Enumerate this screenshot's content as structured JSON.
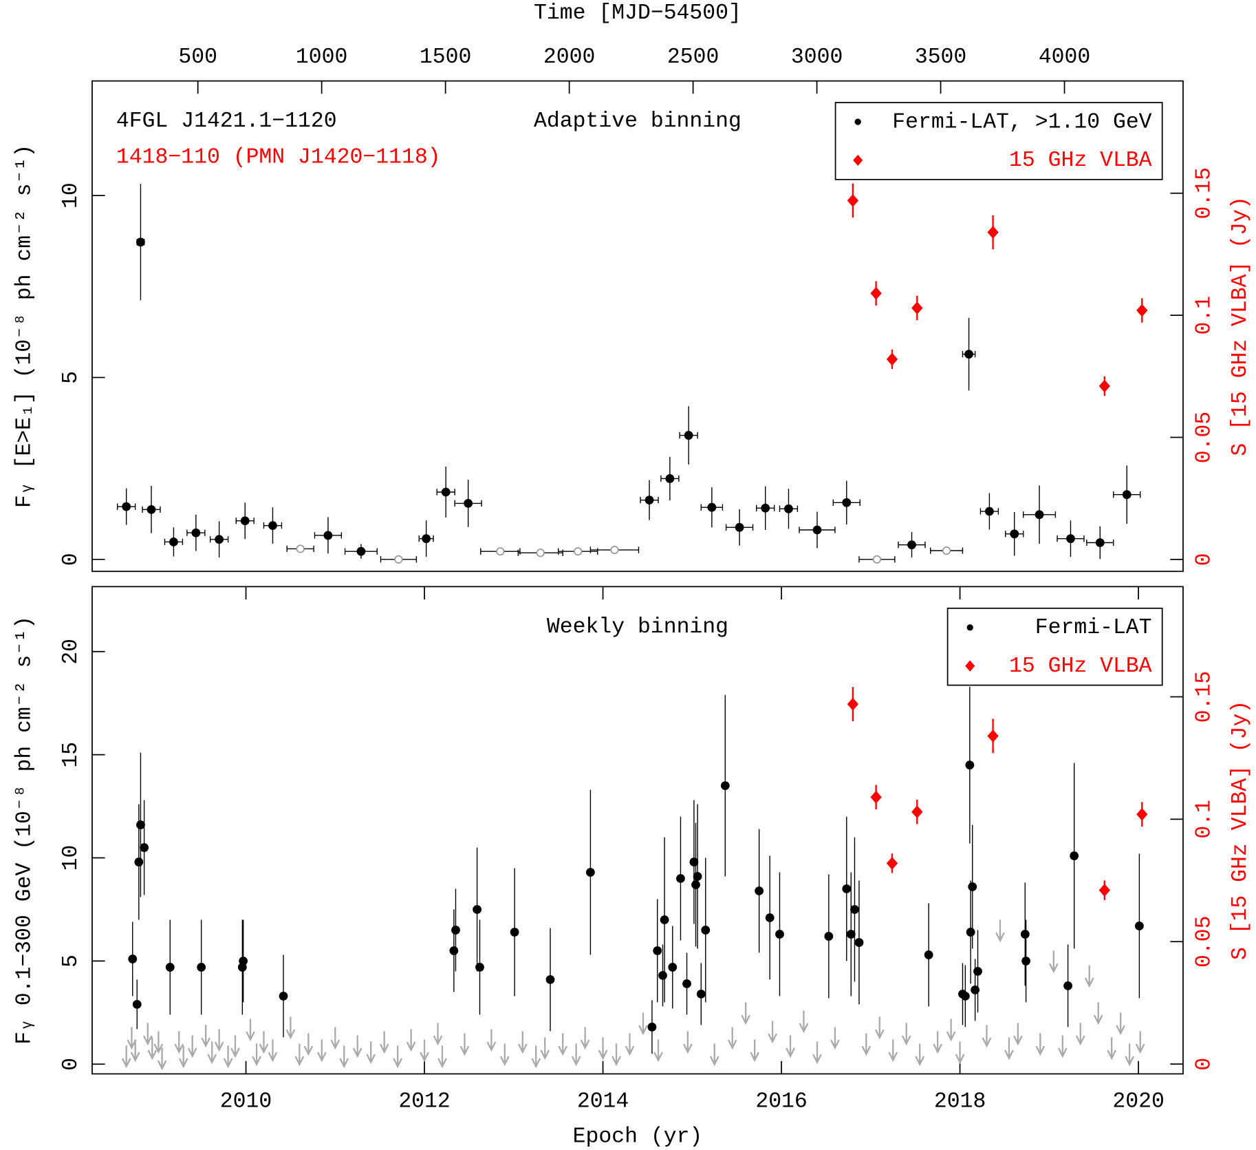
{
  "chart_data": [
    {
      "type": "scatter",
      "title": "Adaptive binning",
      "annotations": [
        {
          "text": "4FGL J1421.1−1120",
          "color": "#000000"
        },
        {
          "text": "1418−110 (PMN J1420−1118)",
          "color": "#ff0000"
        }
      ],
      "x2label": "Time [MJD−54500]",
      "ylabel": "Fᵧ [E>E₁] (10⁻⁸ ph cm⁻² s⁻¹)",
      "y2label": "S [15 GHz VLBA] (Jy)",
      "xlim": [
        2008.277,
        2020.5
      ],
      "x2lim": [
        73,
        4479
      ],
      "x2ticks": [
        500,
        1000,
        1500,
        2000,
        2500,
        3000,
        3500,
        4000
      ],
      "ylim": [
        -0.33,
        13.15
      ],
      "yticks": [
        0,
        5,
        10
      ],
      "y2lim": [
        -0.0049,
        0.196
      ],
      "y2ticks": [
        0,
        0.05,
        0.1,
        0.15
      ],
      "legend": "upper right",
      "series": [
        {
          "name": "Fermi-LAT, >1.10 GeV",
          "color": "#000000",
          "marker": "circle",
          "x": [
            2008.66,
            2008.82,
            2008.94,
            2009.19,
            2009.44,
            2009.7,
            2009.99,
            2010.3,
            2010.92,
            2011.29,
            2012.02,
            2012.24,
            2012.49,
            2014.52,
            2014.75,
            2014.96,
            2015.22,
            2015.53,
            2015.82,
            2016.08,
            2016.4,
            2016.73,
            2017.46,
            2018.1,
            2018.33,
            2018.61,
            2018.89,
            2019.24,
            2019.57,
            2019.87
          ],
          "xerr": [
            0.1,
            0.04,
            0.1,
            0.1,
            0.1,
            0.1,
            0.1,
            0.1,
            0.15,
            0.18,
            0.08,
            0.1,
            0.15,
            0.1,
            0.1,
            0.1,
            0.12,
            0.15,
            0.1,
            0.1,
            0.2,
            0.15,
            0.15,
            0.07,
            0.1,
            0.1,
            0.18,
            0.15,
            0.15,
            0.15
          ],
          "values": [
            1.45,
            8.72,
            1.37,
            0.48,
            0.73,
            0.55,
            1.06,
            0.93,
            0.66,
            0.22,
            0.57,
            1.85,
            1.54,
            1.63,
            2.22,
            3.41,
            1.43,
            0.88,
            1.41,
            1.39,
            0.81,
            1.56,
            0.4,
            5.64,
            1.32,
            0.7,
            1.23,
            0.57,
            0.46,
            1.78
          ],
          "yerr": [
            0.5,
            1.6,
            0.65,
            0.4,
            0.5,
            0.5,
            0.5,
            0.5,
            0.5,
            0.2,
            0.5,
            0.7,
            0.65,
            0.55,
            0.6,
            0.8,
            0.55,
            0.5,
            0.6,
            0.55,
            0.5,
            0.6,
            0.35,
            1.0,
            0.5,
            0.6,
            0.8,
            0.5,
            0.45,
            0.8
          ]
        },
        {
          "color": "#999999",
          "marker": "open-circle",
          "x": [
            2010.61,
            2011.71,
            2012.85,
            2013.3,
            2013.72,
            2014.13,
            2017.07,
            2017.85
          ],
          "xerr": [
            0.15,
            0.2,
            0.22,
            0.25,
            0.22,
            0.27,
            0.2,
            0.18
          ],
          "values": [
            0.29,
            0,
            0.22,
            0.18,
            0.22,
            0.26,
            0,
            0.24
          ]
        },
        {
          "name": "15 GHz VLBA",
          "color": "#ff0000",
          "marker": "diamond",
          "axis": "y2",
          "x": [
            2016.8,
            2017.06,
            2017.24,
            2017.52,
            2018.37,
            2019.62,
            2020.04
          ],
          "values": [
            0.147,
            0.109,
            0.082,
            0.103,
            0.134,
            0.071,
            0.102
          ],
          "yerr": [
            0.007,
            0.005,
            0.004,
            0.005,
            0.007,
            0.004,
            0.005
          ]
        }
      ]
    },
    {
      "type": "scatter",
      "title": "Weekly binning",
      "xlabel": "Epoch (yr)",
      "ylabel": "Fᵧ 0.1−300 GeV (10⁻⁸ ph cm⁻² s⁻¹)",
      "y2label": "S [15 GHz VLBA] (Jy)",
      "xlim": [
        2008.277,
        2020.5
      ],
      "xticks": [
        2010,
        2012,
        2014,
        2016,
        2018,
        2020
      ],
      "ylim": [
        -0.47,
        23.15
      ],
      "yticks": [
        0,
        5,
        10,
        15,
        20
      ],
      "y2lim": [
        -0.004,
        0.195
      ],
      "y2ticks": [
        0,
        0.05,
        0.1,
        0.15
      ],
      "legend": "upper right",
      "series": [
        {
          "name": "Fermi-LAT",
          "color": "#000000",
          "marker": "circle",
          "x": [
            2008.73,
            2008.78,
            2008.8,
            2008.82,
            2008.86,
            2009.15,
            2009.5,
            2009.96,
            2009.97,
            2010.42,
            2012.33,
            2012.35,
            2012.59,
            2012.62,
            2013.01,
            2013.41,
            2013.86,
            2014.55,
            2014.61,
            2014.67,
            2014.69,
            2014.78,
            2014.87,
            2014.94,
            2015.02,
            2015.04,
            2015.06,
            2015.1,
            2015.15,
            2015.37,
            2015.75,
            2015.87,
            2015.98,
            2016.53,
            2016.73,
            2016.78,
            2016.82,
            2016.87,
            2017.65,
            2018.03,
            2018.06,
            2018.11,
            2018.12,
            2018.14,
            2018.17,
            2018.2,
            2018.73,
            2018.74,
            2019.21,
            2019.28,
            2020.01
          ],
          "values": [
            5.1,
            2.9,
            9.8,
            11.6,
            10.5,
            4.7,
            4.7,
            4.7,
            5.0,
            3.3,
            5.5,
            6.5,
            7.5,
            4.7,
            6.4,
            4.1,
            9.3,
            1.8,
            5.5,
            4.3,
            7.0,
            4.7,
            9.0,
            3.9,
            9.8,
            8.7,
            9.1,
            3.4,
            6.5,
            13.5,
            8.4,
            7.1,
            6.3,
            6.2,
            8.5,
            6.3,
            7.5,
            5.9,
            5.3,
            3.4,
            3.3,
            14.5,
            6.4,
            8.6,
            3.6,
            4.5,
            6.3,
            5.0,
            3.8,
            10.1,
            6.7
          ],
          "yerr": [
            1.8,
            1.2,
            2.8,
            3.5,
            2.3,
            2.3,
            2.3,
            2.3,
            2.0,
            2.0,
            2.0,
            2.0,
            3.0,
            2.3,
            3.1,
            2.5,
            4.0,
            1.3,
            2.5,
            1.5,
            4.0,
            2.0,
            3.0,
            1.5,
            3.0,
            3.0,
            3.5,
            1.5,
            3.5,
            4.4,
            3.0,
            3.0,
            3.0,
            3.0,
            3.5,
            3.0,
            3.5,
            3.0,
            2.5,
            1.5,
            1.5,
            3.8,
            2.5,
            3.0,
            1.5,
            2.0,
            2.5,
            2.0,
            2.0,
            4.5,
            3.5
          ]
        },
        {
          "color": "#aaaaaa",
          "marker": "arrow",
          "x": [
            2008.66,
            2008.72,
            2008.76,
            2008.9,
            2008.95,
            2009.02,
            2009.06,
            2009.25,
            2009.3,
            2009.4,
            2009.55,
            2009.62,
            2009.7,
            2009.8,
            2009.88,
            2010.05,
            2010.12,
            2010.2,
            2010.3,
            2010.5,
            2010.6,
            2010.7,
            2010.85,
            2011.0,
            2011.1,
            2011.25,
            2011.4,
            2011.55,
            2011.7,
            2011.85,
            2012.0,
            2012.15,
            2012.2,
            2012.45,
            2012.75,
            2012.9,
            2013.1,
            2013.25,
            2013.35,
            2013.55,
            2013.7,
            2013.8,
            2014.0,
            2014.15,
            2014.3,
            2014.45,
            2014.62,
            2014.95,
            2015.25,
            2015.45,
            2015.6,
            2015.7,
            2015.9,
            2016.1,
            2016.25,
            2016.4,
            2016.6,
            2016.95,
            2017.1,
            2017.25,
            2017.4,
            2017.55,
            2017.75,
            2017.9,
            2018.0,
            2018.3,
            2018.45,
            2018.55,
            2018.65,
            2018.9,
            2019.05,
            2019.15,
            2019.35,
            2019.45,
            2019.55,
            2019.7,
            2019.8,
            2019.9,
            2020.02
          ],
          "values": [
            0.9,
            1.8,
            1.2,
            2.0,
            1.3,
            1.6,
            0.8,
            1.6,
            0.9,
            1.4,
            1.9,
            1.1,
            1.7,
            0.9,
            1.4,
            2.2,
            1.0,
            1.6,
            1.2,
            2.3,
            1.0,
            1.5,
            1.2,
            1.8,
            0.9,
            1.4,
            1.1,
            1.6,
            0.9,
            1.7,
            1.2,
            2.0,
            0.9,
            1.5,
            1.7,
            1.0,
            1.6,
            0.9,
            1.3,
            1.5,
            1.0,
            1.8,
            1.3,
            1.0,
            1.5,
            2.5,
            1.2,
            1.6,
            1.0,
            1.8,
            3.0,
            1.2,
            2.1,
            1.4,
            2.6,
            1.1,
            1.8,
            1.5,
            2.3,
            1.2,
            2.0,
            1.0,
            1.6,
            2.2,
            1.1,
            1.9,
            7.0,
            1.3,
            2.0,
            1.5,
            5.5,
            1.4,
            2.0,
            4.8,
            3.0,
            1.3,
            2.5,
            1.0,
            1.6
          ]
        },
        {
          "name": "15 GHz VLBA",
          "color": "#ff0000",
          "marker": "diamond",
          "axis": "y2",
          "x": [
            2016.8,
            2017.06,
            2017.24,
            2017.52,
            2018.37,
            2019.62,
            2020.04
          ],
          "values": [
            0.147,
            0.109,
            0.082,
            0.103,
            0.134,
            0.071,
            0.102
          ],
          "yerr": [
            0.007,
            0.005,
            0.004,
            0.005,
            0.007,
            0.004,
            0.005
          ]
        }
      ]
    }
  ]
}
